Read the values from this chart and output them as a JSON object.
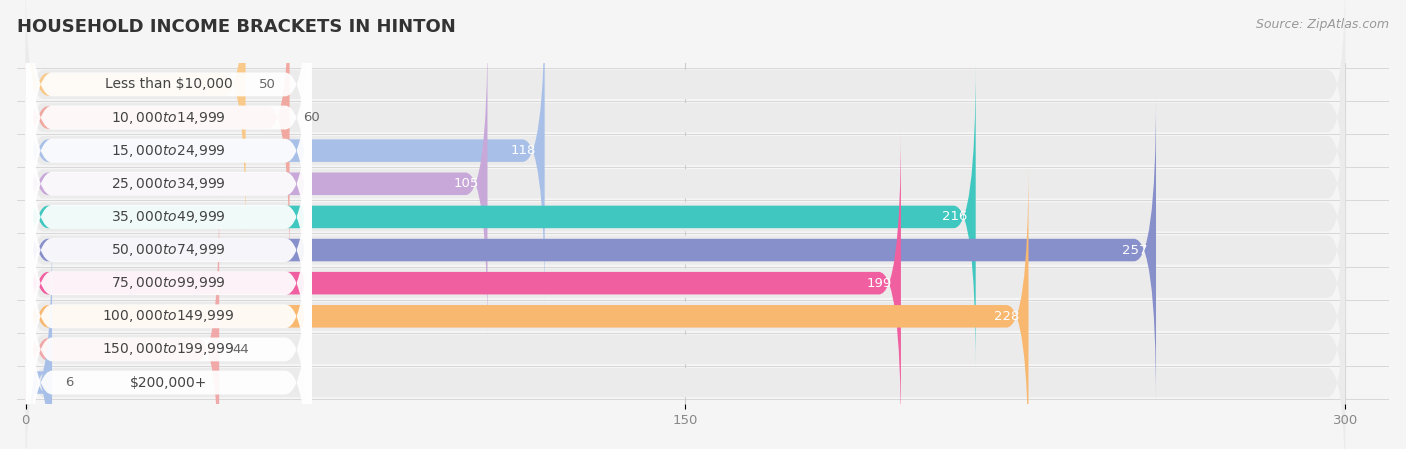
{
  "title": "HOUSEHOLD INCOME BRACKETS IN HINTON",
  "source": "Source: ZipAtlas.com",
  "categories": [
    "Less than $10,000",
    "$10,000 to $14,999",
    "$15,000 to $24,999",
    "$25,000 to $34,999",
    "$35,000 to $49,999",
    "$50,000 to $74,999",
    "$75,000 to $99,999",
    "$100,000 to $149,999",
    "$150,000 to $199,999",
    "$200,000+"
  ],
  "values": [
    50,
    60,
    118,
    105,
    216,
    257,
    199,
    228,
    44,
    6
  ],
  "bar_colors": [
    "#f9c98a",
    "#f0a8a0",
    "#a8c0e8",
    "#c8a8d8",
    "#40c8c0",
    "#8890cc",
    "#f060a0",
    "#f8b870",
    "#f0a8a8",
    "#a8c0e8"
  ],
  "background_color": "#f5f5f5",
  "row_bg_color": "#ebebeb",
  "bar_bg_color": "#e0e0e0",
  "xlim_min": -2,
  "xlim_max": 310,
  "data_max": 300,
  "xticks": [
    0,
    150,
    300
  ],
  "title_fontsize": 13,
  "label_fontsize": 10,
  "value_fontsize": 9.5,
  "source_fontsize": 9
}
